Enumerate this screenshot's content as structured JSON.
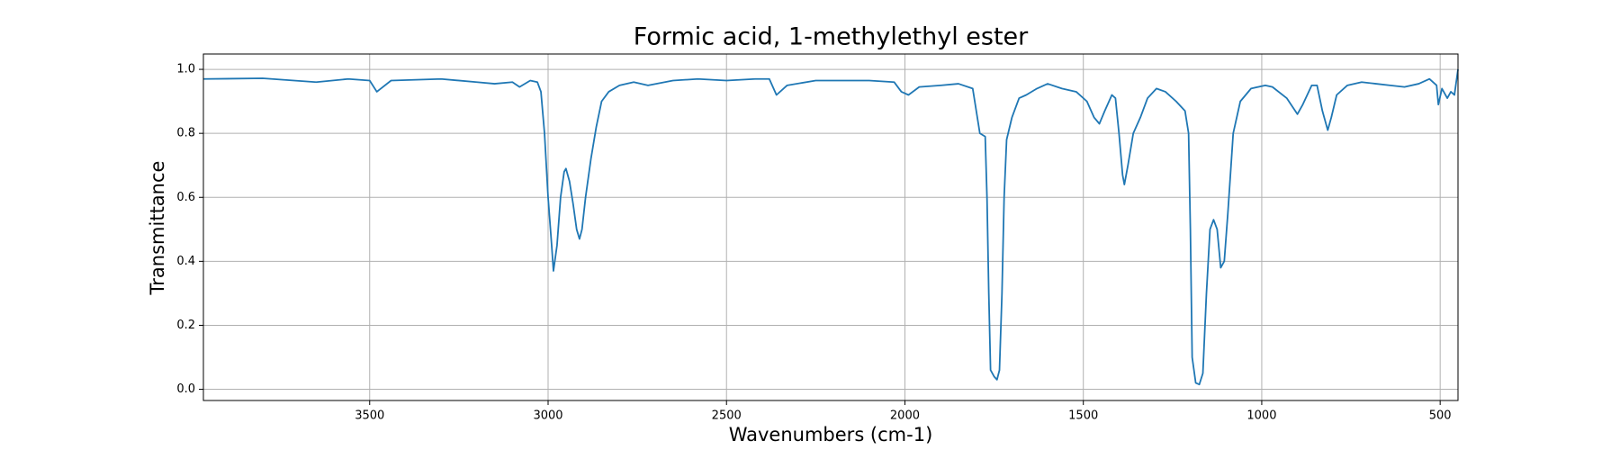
{
  "chart_data": {
    "type": "line",
    "title": "Formic acid, 1-methylethyl ester",
    "x_label": "Wavenumbers (cm-1)",
    "y_label": "Transmittance",
    "x": [
      3965,
      3800,
      3650,
      3560,
      3500,
      3480,
      3440,
      3300,
      3200,
      3150,
      3100,
      3080,
      3050,
      3030,
      3020,
      3010,
      3000,
      2990,
      2985,
      2975,
      2965,
      2955,
      2950,
      2940,
      2930,
      2920,
      2912,
      2905,
      2895,
      2880,
      2865,
      2850,
      2830,
      2800,
      2760,
      2720,
      2650,
      2580,
      2500,
      2420,
      2380,
      2360,
      2330,
      2250,
      2100,
      2030,
      2010,
      1990,
      1960,
      1900,
      1850,
      1810,
      1790,
      1775,
      1770,
      1765,
      1760,
      1750,
      1742,
      1735,
      1728,
      1722,
      1715,
      1700,
      1680,
      1660,
      1630,
      1600,
      1560,
      1520,
      1490,
      1470,
      1455,
      1440,
      1420,
      1410,
      1400,
      1390,
      1385,
      1375,
      1360,
      1340,
      1320,
      1295,
      1270,
      1240,
      1215,
      1205,
      1200,
      1195,
      1185,
      1175,
      1165,
      1155,
      1145,
      1135,
      1125,
      1115,
      1105,
      1095,
      1080,
      1060,
      1030,
      990,
      970,
      930,
      900,
      885,
      860,
      845,
      830,
      815,
      805,
      790,
      760,
      720,
      680,
      640,
      600,
      560,
      530,
      510,
      505,
      495,
      480,
      470,
      460,
      450
    ],
    "values": [
      0.97,
      0.972,
      0.96,
      0.97,
      0.965,
      0.93,
      0.965,
      0.97,
      0.96,
      0.955,
      0.96,
      0.945,
      0.965,
      0.96,
      0.93,
      0.8,
      0.6,
      0.45,
      0.37,
      0.45,
      0.6,
      0.68,
      0.69,
      0.65,
      0.58,
      0.5,
      0.47,
      0.5,
      0.6,
      0.72,
      0.82,
      0.9,
      0.93,
      0.95,
      0.96,
      0.95,
      0.965,
      0.97,
      0.965,
      0.97,
      0.97,
      0.92,
      0.95,
      0.965,
      0.965,
      0.96,
      0.93,
      0.92,
      0.945,
      0.95,
      0.955,
      0.94,
      0.8,
      0.79,
      0.6,
      0.3,
      0.06,
      0.04,
      0.03,
      0.06,
      0.3,
      0.6,
      0.78,
      0.85,
      0.91,
      0.92,
      0.94,
      0.955,
      0.94,
      0.93,
      0.9,
      0.85,
      0.83,
      0.87,
      0.92,
      0.91,
      0.8,
      0.67,
      0.64,
      0.7,
      0.8,
      0.85,
      0.91,
      0.94,
      0.93,
      0.9,
      0.87,
      0.8,
      0.5,
      0.1,
      0.02,
      0.015,
      0.05,
      0.3,
      0.5,
      0.53,
      0.5,
      0.38,
      0.4,
      0.55,
      0.8,
      0.9,
      0.94,
      0.95,
      0.945,
      0.91,
      0.86,
      0.89,
      0.95,
      0.95,
      0.87,
      0.81,
      0.85,
      0.92,
      0.95,
      0.96,
      0.955,
      0.95,
      0.945,
      0.955,
      0.97,
      0.95,
      0.89,
      0.94,
      0.91,
      0.93,
      0.92,
      1.0
    ],
    "color": "#1f77b4",
    "xlim": [
      3966,
      450
    ],
    "ylim": [
      -0.035,
      1.048
    ],
    "xticks": [
      3500,
      3000,
      2500,
      2000,
      1500,
      1000,
      500
    ],
    "yticks": [
      {
        "value": 0,
        "label": "0.0"
      },
      {
        "value": 0.2,
        "label": "0.2"
      },
      {
        "value": 0.4,
        "label": "0.4"
      },
      {
        "value": 0.6,
        "label": "0.6"
      },
      {
        "value": 0.8,
        "label": "0.8"
      },
      {
        "value": 1,
        "label": "1.0"
      }
    ],
    "grid": true
  }
}
